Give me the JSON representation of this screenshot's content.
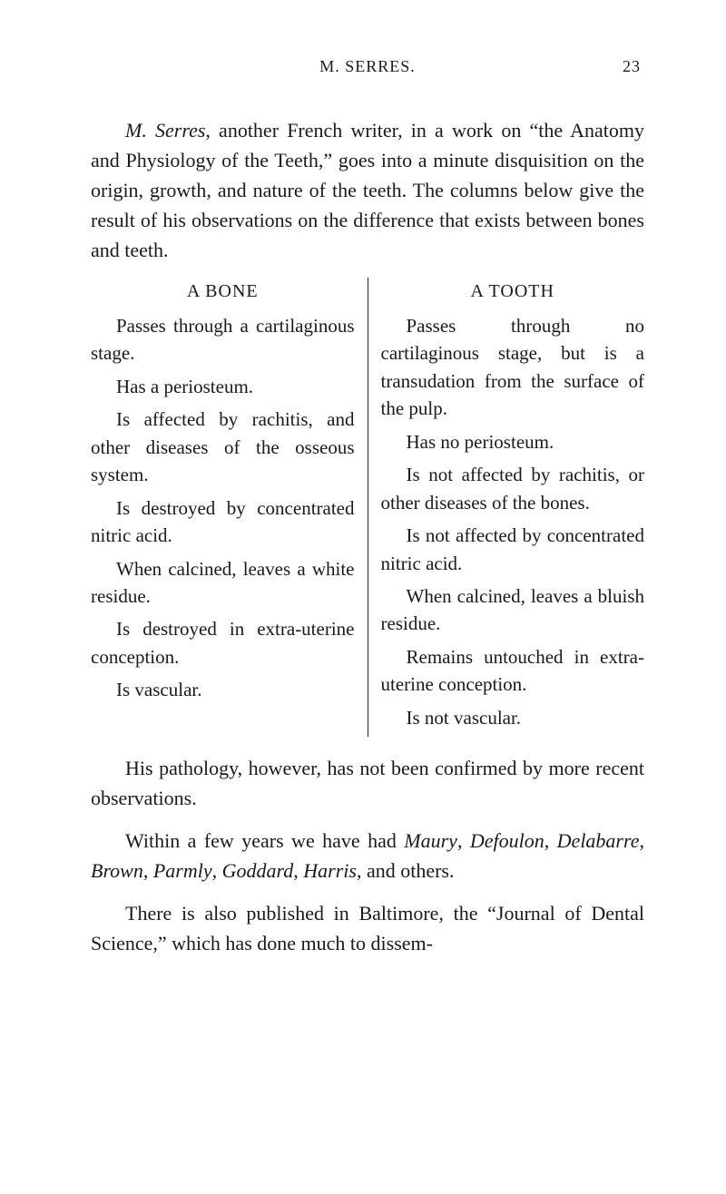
{
  "header": {
    "running_title": "M. SERRES.",
    "page_number": "23"
  },
  "intro": {
    "text_html": "<span class=\"italic\">M. Serres</span>, another French writer, in a work on “the Anatomy and Physiology of the Teeth,” goes into a minute disquisition on the origin, growth, and nature of the teeth. The columns below give the result of his observations on the difference that exists between bones and teeth."
  },
  "table": {
    "left": {
      "heading": "A BONE",
      "items": [
        "Passes through a cartilaginous stage.",
        "Has a periosteum.",
        "Is affected by rachitis, and other diseases of the osseous system.",
        "Is destroyed by concentrated nitric acid.",
        "When calcined, leaves a white residue.",
        "Is destroyed in extra-uterine conception.",
        "Is vascular."
      ]
    },
    "right": {
      "heading": "A TOOTH",
      "items": [
        "Passes through no cartilaginous stage, but is a transudation from the surface of the pulp.",
        "Has no periosteum.",
        "Is not affected by rachitis, or other diseases of the bones.",
        "Is not affected by concentrated nitric acid.",
        "When calcined, leaves a bluish residue.",
        "Remains untouched in extra-uterine conception.",
        "Is not vascular."
      ]
    }
  },
  "after": {
    "p1": "His pathology, however, has not been confirmed by more recent observations.",
    "p2_html": "Within a few years we have had <span class=\"italic\">Maury</span>, <span class=\"italic\">Defoulon</span>, <span class=\"italic\">Delabarre</span>, <span class=\"italic\">Brown</span>, <span class=\"italic\">Parmly</span>, <span class=\"italic\">Goddard</span>, <span class=\"italic\">Harris</span>, and others.",
    "p3": "There is also published in Baltimore, the “Journal of Dental Science,” which has done much to dissem-"
  }
}
